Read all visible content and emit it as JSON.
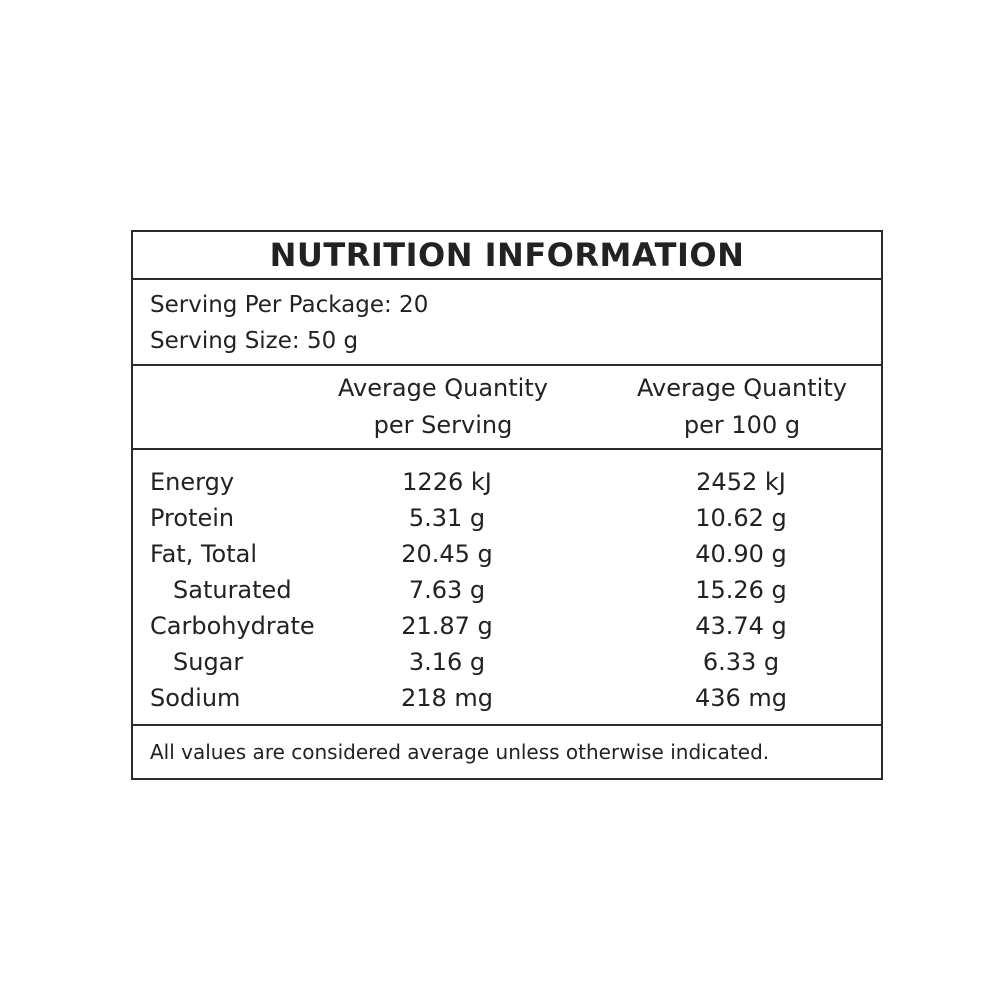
{
  "label": {
    "title": "NUTRITION INFORMATION",
    "serving_per_package": "Serving Per Package: 20",
    "serving_size": "Serving Size: 50 g",
    "columns": [
      {
        "line1": "Average Quantity",
        "line2": "per Serving"
      },
      {
        "line1": "Average Quantity",
        "line2": "per 100 g"
      }
    ],
    "rows": [
      {
        "name": "Energy",
        "per_serving": "1226 kJ",
        "per_100g": "2452 kJ"
      },
      {
        "name": "Protein",
        "per_serving": "5.31 g",
        "per_100g": "10.62 g"
      },
      {
        "name": "Fat, Total",
        "per_serving": "20.45 g",
        "per_100g": "40.90 g"
      },
      {
        "name": "Saturated",
        "per_serving": "7.63 g",
        "per_100g": "15.26 g"
      },
      {
        "name": "Carbohydrate",
        "per_serving": "21.87 g",
        "per_100g": "43.74 g"
      },
      {
        "name": "Sugar",
        "per_serving": "3.16 g",
        "per_100g": "6.33 g"
      },
      {
        "name": "Sodium",
        "per_serving": "218 mg",
        "per_100g": "436 mg"
      }
    ],
    "footnote": "All values are considered average unless otherwise indicated."
  }
}
